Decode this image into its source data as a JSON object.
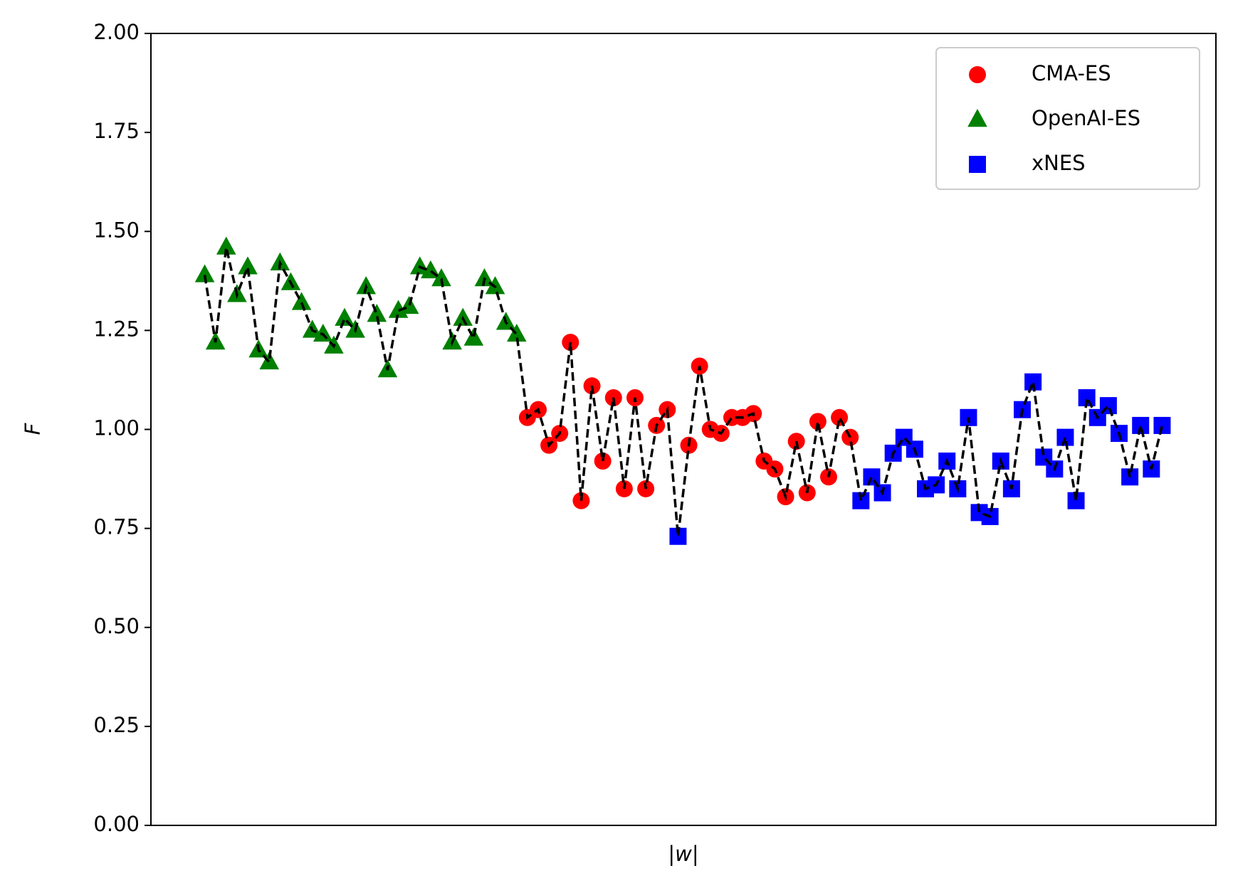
{
  "chart_data": {
    "type": "scatter",
    "xlabel": "|w|",
    "ylabel": "F",
    "x": [
      0,
      1,
      2,
      3,
      4,
      5,
      6,
      7,
      8,
      9,
      10,
      11,
      12,
      13,
      14,
      15,
      16,
      17,
      18,
      19,
      20,
      21,
      22,
      23,
      24,
      25,
      26,
      27,
      28,
      29,
      30,
      31,
      32,
      33,
      34,
      35,
      36,
      37,
      38,
      39,
      40,
      41,
      42,
      43,
      44,
      45,
      46,
      47,
      48,
      49,
      50,
      51,
      52,
      53,
      54,
      55,
      56,
      57,
      58,
      59,
      60,
      61,
      62,
      63,
      64,
      65,
      66,
      67,
      68,
      69,
      70,
      71,
      72,
      73,
      74,
      75,
      76,
      77,
      78,
      79,
      80,
      81,
      82,
      83,
      84,
      85,
      86,
      87,
      88,
      89
    ],
    "xlim": [
      -5,
      94
    ],
    "ylim": [
      0,
      2
    ],
    "yticks": [
      {
        "value": 0,
        "label": "0.00"
      },
      {
        "value": 0.25,
        "label": "0.25"
      },
      {
        "value": 0.5,
        "label": "0.50"
      },
      {
        "value": 0.75,
        "label": "0.75"
      },
      {
        "value": 1,
        "label": "1.00"
      },
      {
        "value": 1.25,
        "label": "1.25"
      },
      {
        "value": 1.5,
        "label": "1.50"
      },
      {
        "value": 1.75,
        "label": "1.75"
      },
      {
        "value": 2,
        "label": "2.00"
      }
    ],
    "connect": true,
    "legend": "upper right",
    "series": [
      {
        "name": "CMA-ES",
        "color": "#ff0000",
        "marker": "circle",
        "values": [
          null,
          null,
          null,
          null,
          null,
          null,
          null,
          null,
          null,
          null,
          null,
          null,
          null,
          null,
          null,
          null,
          null,
          null,
          null,
          null,
          null,
          null,
          null,
          null,
          null,
          null,
          null,
          null,
          null,
          null,
          1.03,
          1.05,
          0.96,
          0.99,
          1.22,
          0.82,
          1.11,
          0.92,
          1.08,
          0.85,
          1.08,
          0.85,
          1.01,
          1.05,
          null,
          0.96,
          1.16,
          1.0,
          0.99,
          1.03,
          1.03,
          1.04,
          0.92,
          0.9,
          0.83,
          0.97,
          0.84,
          1.02,
          0.88,
          1.03,
          0.98,
          null,
          null,
          null,
          null,
          null,
          null,
          null,
          null,
          null,
          null,
          null,
          null,
          null,
          null,
          null,
          null,
          null,
          null,
          null,
          null,
          null,
          null,
          null,
          null,
          null,
          null,
          null,
          null,
          null
        ]
      },
      {
        "name": "OpenAI-ES",
        "color": "#008000",
        "marker": "triangle",
        "values": [
          1.39,
          1.22,
          1.46,
          1.34,
          1.41,
          1.2,
          1.17,
          1.42,
          1.37,
          1.32,
          1.25,
          1.24,
          1.21,
          1.28,
          1.25,
          1.36,
          1.29,
          1.15,
          1.3,
          1.31,
          1.41,
          1.4,
          1.38,
          1.22,
          1.28,
          1.23,
          1.38,
          1.36,
          1.27,
          1.24,
          null,
          null,
          null,
          null,
          null,
          null,
          null,
          null,
          null,
          null,
          null,
          null,
          null,
          null,
          null,
          null,
          null,
          null,
          null,
          null,
          null,
          null,
          null,
          null,
          null,
          null,
          null,
          null,
          null,
          null,
          null,
          null,
          null,
          null,
          null,
          null,
          null,
          null,
          null,
          null,
          null,
          null,
          null,
          null,
          null,
          null,
          null,
          null,
          null,
          null,
          null,
          null,
          null,
          null,
          null,
          null,
          null,
          null,
          null,
          null
        ]
      },
      {
        "name": "xNES",
        "color": "#0000ff",
        "marker": "square",
        "values": [
          null,
          null,
          null,
          null,
          null,
          null,
          null,
          null,
          null,
          null,
          null,
          null,
          null,
          null,
          null,
          null,
          null,
          null,
          null,
          null,
          null,
          null,
          null,
          null,
          null,
          null,
          null,
          null,
          null,
          null,
          null,
          null,
          null,
          null,
          null,
          null,
          null,
          null,
          null,
          null,
          null,
          null,
          null,
          null,
          0.73,
          null,
          null,
          null,
          null,
          null,
          null,
          null,
          null,
          null,
          null,
          null,
          null,
          null,
          null,
          null,
          null,
          0.82,
          0.88,
          0.84,
          0.94,
          0.98,
          0.95,
          0.85,
          0.86,
          0.92,
          0.85,
          1.03,
          0.79,
          0.78,
          0.92,
          0.85,
          1.05,
          1.12,
          0.93,
          0.9,
          0.98,
          0.82,
          1.08,
          1.03,
          1.06,
          0.99,
          0.88,
          1.01,
          0.9,
          1.01
        ]
      }
    ]
  }
}
